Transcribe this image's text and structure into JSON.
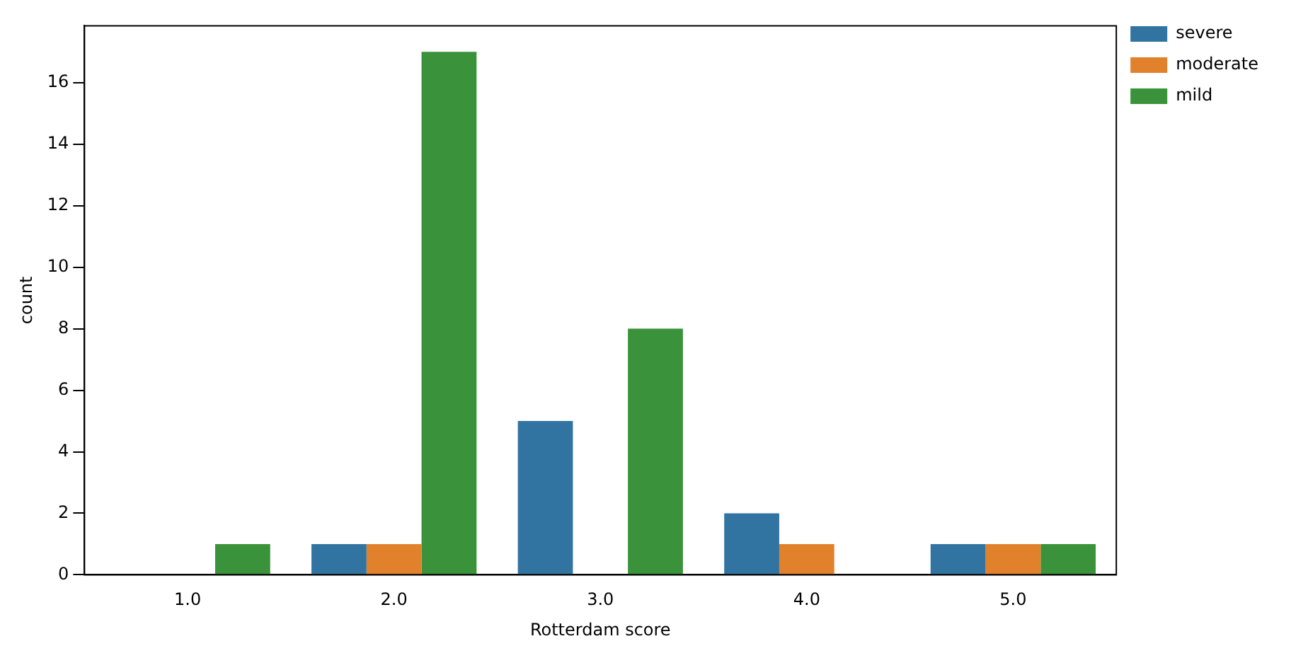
{
  "chart_data": {
    "type": "bar",
    "xlabel": "Rotterdam score",
    "ylabel": "count",
    "categories": [
      "1.0",
      "2.0",
      "3.0",
      "4.0",
      "5.0"
    ],
    "series": [
      {
        "name": "severe",
        "color": "#3274a1",
        "values": [
          0,
          1,
          5,
          2,
          1
        ]
      },
      {
        "name": "moderate",
        "color": "#e1812c",
        "values": [
          0,
          1,
          0,
          1,
          1
        ]
      },
      {
        "name": "mild",
        "color": "#3a923a",
        "values": [
          1,
          17,
          8,
          0,
          1
        ]
      }
    ],
    "ylim": [
      0,
      17.85
    ],
    "yticks": [
      0,
      2,
      4,
      6,
      8,
      10,
      12,
      14,
      16
    ],
    "grid": false,
    "legend": "top right"
  }
}
